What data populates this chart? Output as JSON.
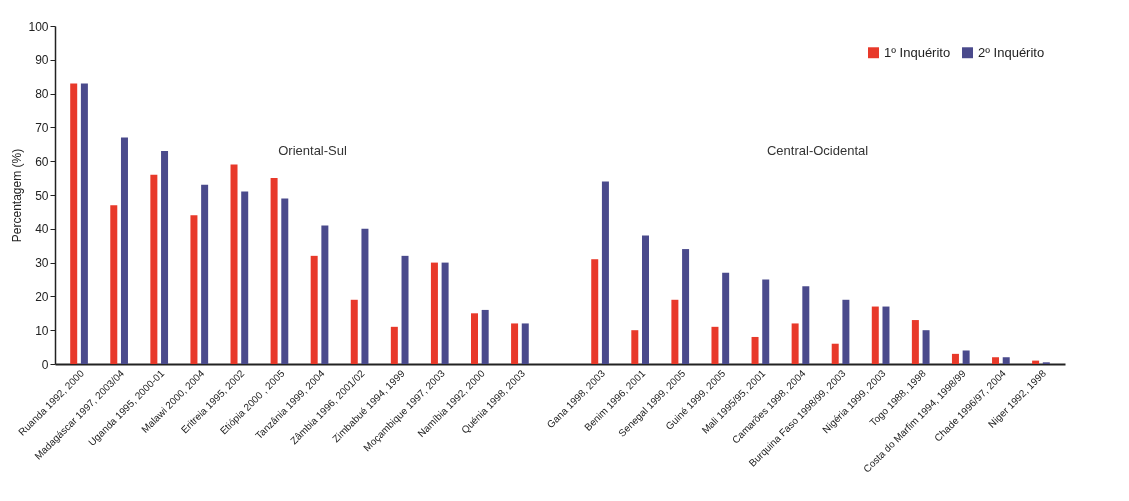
{
  "chart_data": {
    "type": "bar",
    "ylabel": "Percentagem (%)",
    "categories": [
      "Ruanda 1992, 2000",
      "Madagáscar 1997, 2003/04",
      "Uganda 1995, 2000-01",
      "Malawi 2000, 2004",
      "Eritreia 1995, 2002",
      "Etiópia 2000 , 2005",
      "Tanzânia 1999, 2004",
      "Zâmbia 1996, 2001/02",
      "Zimbabué 1994, 1999",
      "Moçambique 1997, 2003",
      "Namíbia 1992, 2000",
      "Quénia 1998, 2003",
      null,
      "Gana 1998, 2003",
      "Benim 1996, 2001",
      "Senegal 1999, 2005",
      "Guiné 1999, 2005",
      "Mali 1995/95, 2001",
      "Camarões 1998, 2004",
      "Burquina Faso 1998/99, 2003",
      "Nigéria 1999, 2003",
      "Togo 1988, 1998",
      "Costa do Marfim 1994, 1998/99",
      "Chade 1996/97, 2004",
      "Niger 1992, 1998"
    ],
    "series": [
      {
        "name": "1º Inquérito",
        "color": "#e8392a",
        "values": [
          83,
          47,
          56,
          44,
          59,
          55,
          32,
          19,
          11,
          30,
          15,
          12,
          null,
          31,
          10,
          19,
          11,
          8,
          12,
          6,
          17,
          13,
          3,
          2,
          1
        ]
      },
      {
        "name": "2º Inquérito",
        "color": "#4a4a8c",
        "values": [
          83,
          67,
          63,
          53,
          51,
          49,
          41,
          40,
          32,
          30,
          16,
          12,
          null,
          54,
          38,
          34,
          27,
          25,
          23,
          19,
          17,
          10,
          4,
          2,
          0.5
        ]
      }
    ],
    "ylim": [
      0,
      100
    ],
    "yticks": [
      0,
      10,
      20,
      30,
      40,
      50,
      60,
      70,
      80,
      90,
      100
    ],
    "grid": false,
    "legend": "top right",
    "annotations": [
      "Oriental-Sul",
      "Central-Ocidental"
    ]
  }
}
